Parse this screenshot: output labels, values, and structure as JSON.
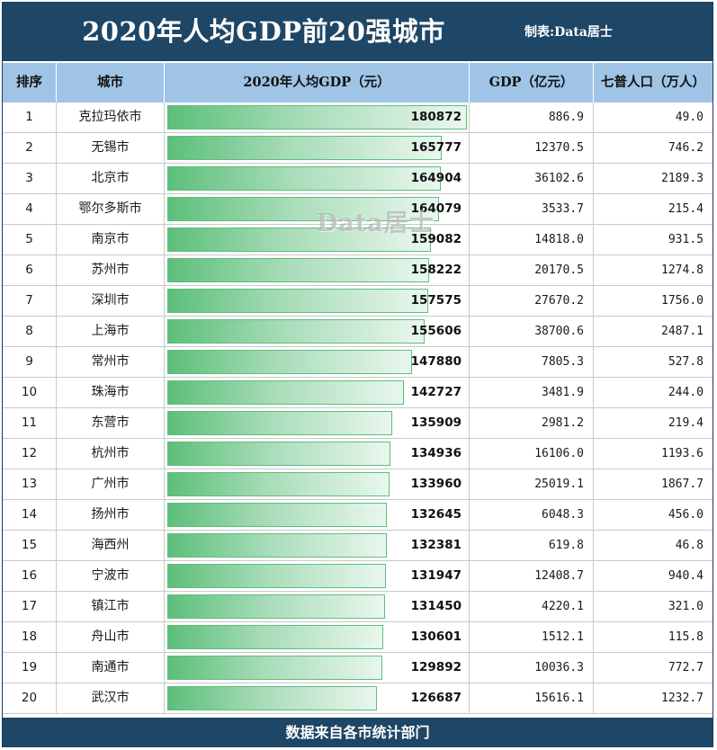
{
  "title": "2020年人均GDP前20强城市",
  "credit": "制表:Data居士",
  "watermark": "Data居士",
  "footer": "数据来自各市统计部门",
  "columns": [
    "排序",
    "城市",
    "2020年人均GDP（元）",
    "GDP（亿元）",
    "七普人口（万人）"
  ],
  "colors": {
    "header_dark": "#1e4666",
    "header_light": "#9fc4e6",
    "bar_start": "#5cbf7a",
    "bar_end": "#e9f7ee"
  },
  "chart_data": {
    "type": "table",
    "bar_column": "2020年人均GDP（元）",
    "bar_max": 180872,
    "rows": [
      {
        "rank": "1",
        "city": "克拉玛依市",
        "per_capita": "180872",
        "per_capita_num": 180872,
        "gdp": "886.9",
        "pop": "49.0"
      },
      {
        "rank": "2",
        "city": "无锡市",
        "per_capita": "165777",
        "per_capita_num": 165777,
        "gdp": "12370.5",
        "pop": "746.2"
      },
      {
        "rank": "3",
        "city": "北京市",
        "per_capita": "164904",
        "per_capita_num": 164904,
        "gdp": "36102.6",
        "pop": "2189.3"
      },
      {
        "rank": "4",
        "city": "鄂尔多斯市",
        "per_capita": "164079",
        "per_capita_num": 164079,
        "gdp": "3533.7",
        "pop": "215.4"
      },
      {
        "rank": "5",
        "city": "南京市",
        "per_capita": "159082",
        "per_capita_num": 159082,
        "gdp": "14818.0",
        "pop": "931.5"
      },
      {
        "rank": "6",
        "city": "苏州市",
        "per_capita": "158222",
        "per_capita_num": 158222,
        "gdp": "20170.5",
        "pop": "1274.8"
      },
      {
        "rank": "7",
        "city": "深圳市",
        "per_capita": "157575",
        "per_capita_num": 157575,
        "gdp": "27670.2",
        "pop": "1756.0"
      },
      {
        "rank": "8",
        "city": "上海市",
        "per_capita": "155606",
        "per_capita_num": 155606,
        "gdp": "38700.6",
        "pop": "2487.1"
      },
      {
        "rank": "9",
        "city": "常州市",
        "per_capita": "147880",
        "per_capita_num": 147880,
        "gdp": "7805.3",
        "pop": "527.8"
      },
      {
        "rank": "10",
        "city": "珠海市",
        "per_capita": "142727",
        "per_capita_num": 142727,
        "gdp": "3481.9",
        "pop": "244.0"
      },
      {
        "rank": "11",
        "city": "东营市",
        "per_capita": "135909",
        "per_capita_num": 135909,
        "gdp": "2981.2",
        "pop": "219.4"
      },
      {
        "rank": "12",
        "city": "杭州市",
        "per_capita": "134936",
        "per_capita_num": 134936,
        "gdp": "16106.0",
        "pop": "1193.6"
      },
      {
        "rank": "13",
        "city": "广州市",
        "per_capita": "133960",
        "per_capita_num": 133960,
        "gdp": "25019.1",
        "pop": "1867.7"
      },
      {
        "rank": "14",
        "city": "扬州市",
        "per_capita": "132645",
        "per_capita_num": 132645,
        "gdp": "6048.3",
        "pop": "456.0"
      },
      {
        "rank": "15",
        "city": "海西州",
        "per_capita": "132381",
        "per_capita_num": 132381,
        "gdp": "619.8",
        "pop": "46.8"
      },
      {
        "rank": "16",
        "city": "宁波市",
        "per_capita": "131947",
        "per_capita_num": 131947,
        "gdp": "12408.7",
        "pop": "940.4"
      },
      {
        "rank": "17",
        "city": "镇江市",
        "per_capita": "131450",
        "per_capita_num": 131450,
        "gdp": "4220.1",
        "pop": "321.0"
      },
      {
        "rank": "18",
        "city": "舟山市",
        "per_capita": "130601",
        "per_capita_num": 130601,
        "gdp": "1512.1",
        "pop": "115.8"
      },
      {
        "rank": "19",
        "city": "南通市",
        "per_capita": "129892",
        "per_capita_num": 129892,
        "gdp": "10036.3",
        "pop": "772.7"
      },
      {
        "rank": "20",
        "city": "武汉市",
        "per_capita": "126687",
        "per_capita_num": 126687,
        "gdp": "15616.1",
        "pop": "1232.7"
      }
    ]
  }
}
